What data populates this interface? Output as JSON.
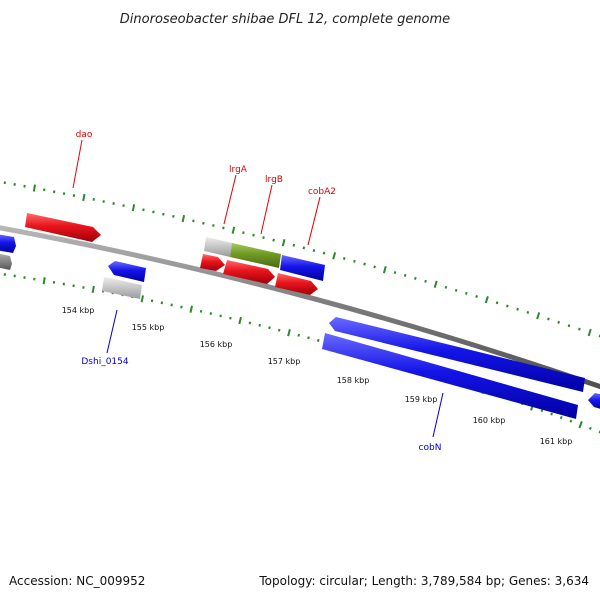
{
  "title": "Dinoroseobacter shibae DFL 12, complete genome",
  "footer": {
    "accession": "Accession: NC_009952",
    "summary": "Topology: circular; Length: 3,789,584 bp; Genes: 3,634"
  },
  "colors": {
    "red": "#e8141c",
    "blue": "#1414e8",
    "green": "#6f9a22",
    "grey": "#c8c8c8",
    "dark": "#888888",
    "tick": "#2a8a2a",
    "backbone": "#808080",
    "label_red": "#e00000",
    "label_blue": "#0000c8"
  },
  "scale": {
    "labels": [
      "154 kbp",
      "155 kbp",
      "156 kbp",
      "157 kbp",
      "158 kbp",
      "159 kbp",
      "160 kbp",
      "161 kbp"
    ]
  },
  "gene_labels": [
    {
      "text": "dao",
      "color": "red"
    },
    {
      "text": "lrgA",
      "color": "red"
    },
    {
      "text": "lrgB",
      "color": "red"
    },
    {
      "text": "cobA2",
      "color": "red"
    },
    {
      "text": "Dshi_0154",
      "color": "blue"
    },
    {
      "text": "cobN",
      "color": "blue"
    }
  ]
}
